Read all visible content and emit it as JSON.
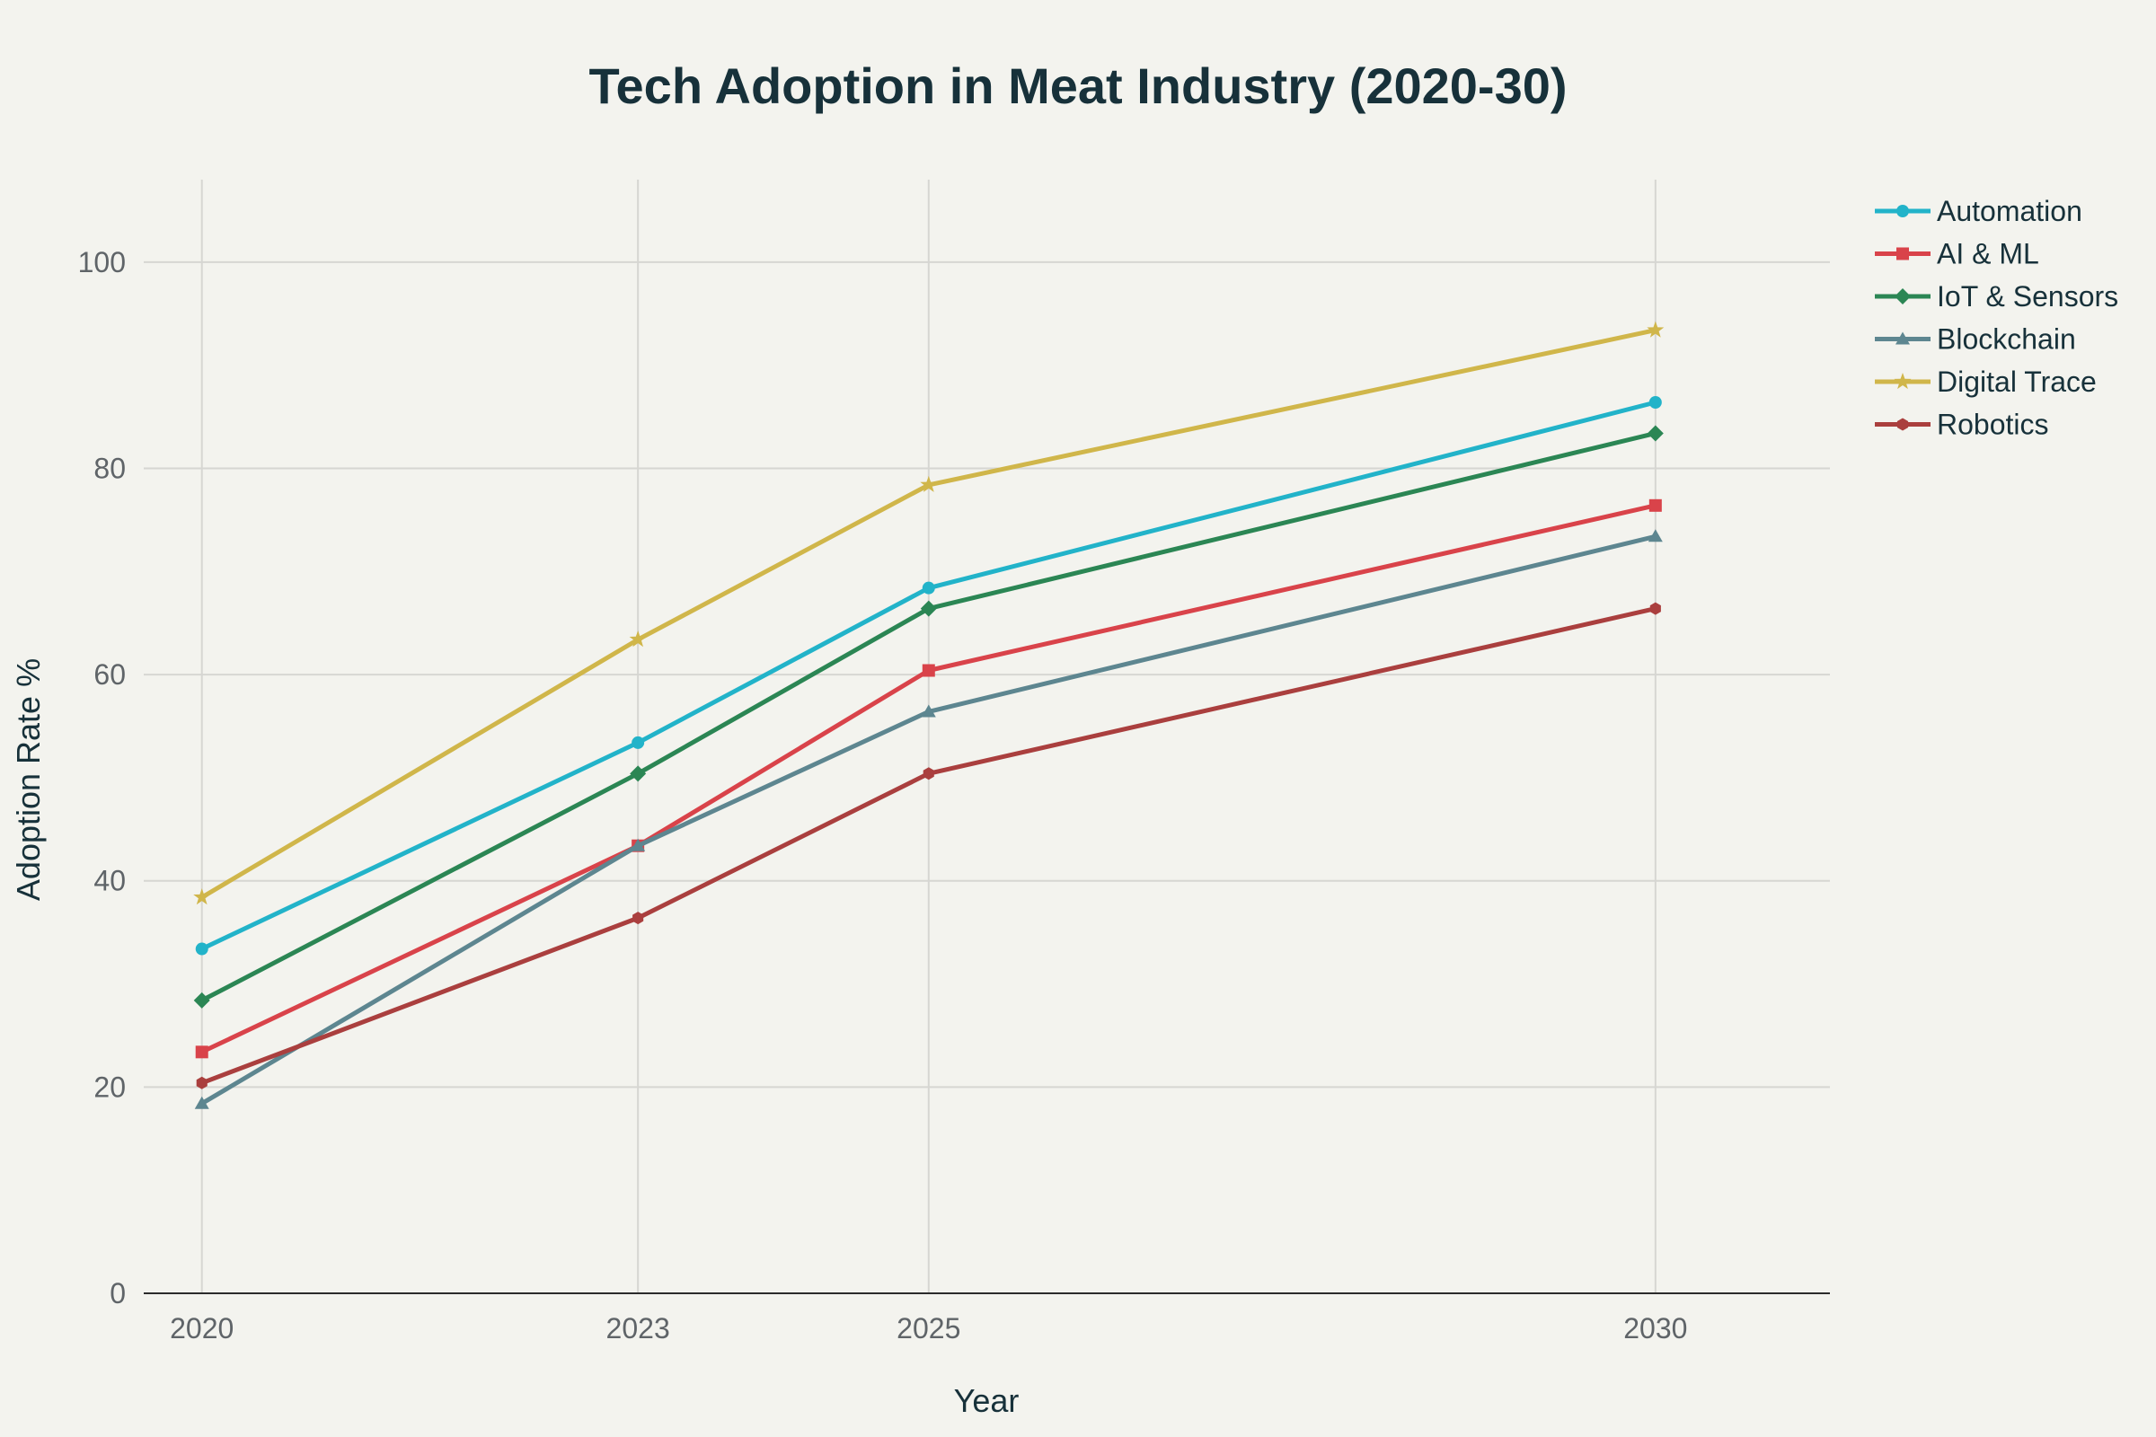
{
  "chart_data": {
    "type": "line",
    "title": "Tech Adoption in Meat Industry (2020-30)",
    "xlabel": "Year",
    "ylabel": "Adoption Rate %",
    "x": [
      2020,
      2023,
      2025,
      2030
    ],
    "x_tick_labels": [
      "2020",
      "2023",
      "2025",
      "2030"
    ],
    "xlim": [
      2019.6,
      2031.2
    ],
    "ylim": [
      0,
      108
    ],
    "y_ticks": [
      0,
      20,
      40,
      60,
      80,
      100
    ],
    "y_tick_labels": [
      "0",
      "20",
      "40",
      "60",
      "80",
      "100"
    ],
    "grid": true,
    "legend_position": "top-right",
    "series": [
      {
        "name": "Automation",
        "color": "#22b3c9",
        "marker": "circle",
        "values": [
          33.4,
          53.4,
          68.4,
          86.4
        ]
      },
      {
        "name": "AI & ML",
        "color": "#d9434a",
        "marker": "square",
        "values": [
          23.4,
          43.4,
          60.4,
          76.4
        ]
      },
      {
        "name": "IoT & Sensors",
        "color": "#2b8654",
        "marker": "diamond",
        "values": [
          28.4,
          50.4,
          66.4,
          83.4
        ]
      },
      {
        "name": "Blockchain",
        "color": "#5d8690",
        "marker": "triangle",
        "values": [
          18.4,
          43.4,
          56.4,
          73.4
        ]
      },
      {
        "name": "Digital Trace",
        "color": "#d0b64a",
        "marker": "star",
        "values": [
          38.4,
          63.4,
          78.4,
          93.4
        ]
      },
      {
        "name": "Robotics",
        "color": "#aa3f3e",
        "marker": "hexagon",
        "values": [
          20.4,
          36.4,
          50.4,
          66.4
        ]
      }
    ]
  }
}
